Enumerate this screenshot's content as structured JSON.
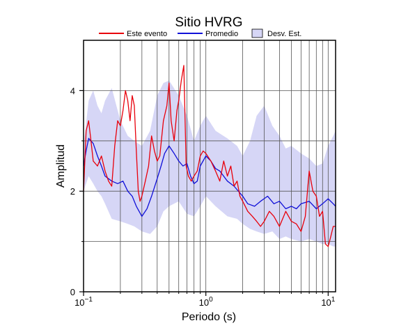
{
  "chart_data": {
    "type": "line",
    "title": "Sitio HVRG",
    "xlabel": "Periodo (s)",
    "ylabel": "Amplitud",
    "x_scale": "log",
    "xlim": [
      0.1,
      11.5
    ],
    "ylim": [
      0,
      5
    ],
    "x_ticks": [
      {
        "value": 0.1,
        "base": "10",
        "exp": "−1"
      },
      {
        "value": 1,
        "base": "10",
        "exp": "0"
      },
      {
        "value": 10,
        "base": "10",
        "exp": "1"
      }
    ],
    "y_ticks": [
      {
        "value": 0,
        "label": "0"
      },
      {
        "value": 2,
        "label": "2"
      },
      {
        "value": 4,
        "label": "4"
      }
    ],
    "y_minor_grid": [
      1,
      3
    ],
    "grid": true,
    "legend_position": "top",
    "legend": [
      {
        "label": "Este evento",
        "kind": "line",
        "color": "#e8000b"
      },
      {
        "label": "Promedio",
        "kind": "line",
        "color": "#1010d8"
      },
      {
        "label": "Desv. Est.",
        "kind": "box",
        "color": "#d6d6f6"
      }
    ],
    "series": [
      {
        "name": "Este evento",
        "color": "#e8000b",
        "x": [
          0.1,
          0.105,
          0.11,
          0.115,
          0.12,
          0.13,
          0.14,
          0.15,
          0.16,
          0.17,
          0.18,
          0.19,
          0.2,
          0.21,
          0.22,
          0.23,
          0.24,
          0.25,
          0.26,
          0.27,
          0.28,
          0.29,
          0.3,
          0.32,
          0.34,
          0.36,
          0.38,
          0.4,
          0.42,
          0.45,
          0.48,
          0.5,
          0.52,
          0.55,
          0.58,
          0.6,
          0.63,
          0.66,
          0.69,
          0.72,
          0.76,
          0.8,
          0.85,
          0.9,
          0.95,
          1.0,
          1.1,
          1.2,
          1.3,
          1.4,
          1.5,
          1.6,
          1.7,
          1.8,
          1.9,
          2.0,
          2.2,
          2.4,
          2.6,
          2.8,
          3.0,
          3.3,
          3.6,
          4.0,
          4.5,
          5.0,
          5.5,
          6.0,
          6.5,
          7.0,
          7.5,
          8.0,
          8.5,
          9.0,
          9.5,
          10.0,
          10.5,
          11.0,
          11.5
        ],
        "y": [
          2.0,
          3.2,
          3.4,
          3.0,
          2.6,
          2.5,
          2.7,
          2.4,
          2.2,
          2.1,
          2.9,
          3.4,
          3.3,
          3.6,
          4.0,
          3.8,
          3.4,
          3.9,
          3.7,
          2.8,
          2.0,
          1.8,
          1.9,
          2.2,
          2.5,
          3.1,
          2.8,
          2.6,
          2.7,
          3.4,
          3.7,
          4.15,
          3.4,
          3.0,
          3.6,
          3.8,
          4.2,
          4.5,
          2.5,
          2.3,
          2.2,
          2.3,
          2.4,
          2.7,
          2.8,
          2.75,
          2.6,
          2.4,
          2.2,
          2.6,
          2.3,
          2.5,
          2.1,
          2.2,
          1.9,
          1.8,
          1.6,
          1.5,
          1.4,
          1.3,
          1.4,
          1.6,
          1.5,
          1.3,
          1.6,
          1.4,
          1.35,
          1.2,
          1.5,
          2.4,
          2.0,
          1.9,
          1.5,
          1.6,
          0.95,
          0.9,
          1.1,
          1.3,
          1.3
        ]
      },
      {
        "name": "Promedio",
        "color": "#1010d8",
        "x": [
          0.1,
          0.105,
          0.11,
          0.12,
          0.13,
          0.14,
          0.15,
          0.17,
          0.19,
          0.21,
          0.23,
          0.25,
          0.27,
          0.3,
          0.33,
          0.36,
          0.4,
          0.43,
          0.46,
          0.5,
          0.55,
          0.6,
          0.65,
          0.7,
          0.75,
          0.8,
          0.85,
          0.9,
          1.0,
          1.1,
          1.2,
          1.3,
          1.5,
          1.7,
          2.0,
          2.2,
          2.5,
          2.8,
          3.2,
          3.6,
          4.0,
          4.5,
          5.0,
          5.5,
          6.0,
          7.0,
          8.0,
          9.0,
          10.0,
          11.0,
          11.5
        ],
        "y": [
          2.5,
          2.8,
          3.05,
          2.95,
          2.7,
          2.5,
          2.3,
          2.2,
          2.15,
          2.2,
          2.0,
          1.9,
          1.7,
          1.5,
          1.65,
          1.9,
          2.25,
          2.5,
          2.75,
          2.9,
          2.75,
          2.6,
          2.5,
          2.55,
          2.3,
          2.15,
          2.2,
          2.5,
          2.7,
          2.6,
          2.45,
          2.4,
          2.2,
          2.1,
          1.9,
          1.75,
          1.7,
          1.8,
          1.9,
          1.75,
          1.8,
          1.65,
          1.7,
          1.65,
          1.75,
          1.8,
          1.65,
          1.75,
          1.85,
          1.75,
          1.7
        ]
      }
    ],
    "band": {
      "name": "Desv. Est.",
      "color": "#d6d6f6",
      "x": [
        0.1,
        0.11,
        0.12,
        0.13,
        0.14,
        0.15,
        0.17,
        0.2,
        0.23,
        0.26,
        0.3,
        0.35,
        0.4,
        0.45,
        0.5,
        0.6,
        0.7,
        0.8,
        0.9,
        1.0,
        1.2,
        1.5,
        1.8,
        2.0,
        2.3,
        2.6,
        3.0,
        3.5,
        4.0,
        4.5,
        5.0,
        6.0,
        7.0,
        8.0,
        9.0,
        10.0,
        11.0,
        11.5
      ],
      "upper": [
        2.9,
        3.8,
        4.0,
        3.7,
        3.55,
        3.8,
        4.05,
        3.4,
        3.1,
        3.0,
        2.9,
        3.2,
        3.9,
        4.15,
        4.2,
        3.9,
        3.5,
        3.0,
        3.3,
        3.5,
        3.2,
        3.05,
        2.9,
        2.7,
        3.0,
        3.5,
        3.7,
        3.3,
        3.1,
        2.85,
        2.9,
        2.75,
        2.65,
        2.5,
        2.55,
        2.9,
        3.1,
        3.2
      ],
      "lower": [
        2.0,
        2.3,
        2.15,
        2.0,
        1.9,
        1.75,
        1.45,
        1.4,
        1.35,
        1.3,
        1.2,
        1.15,
        1.3,
        1.6,
        1.7,
        1.8,
        1.55,
        1.5,
        1.7,
        1.9,
        1.7,
        1.5,
        1.45,
        1.35,
        1.25,
        1.2,
        1.15,
        1.2,
        1.05,
        1.1,
        1.05,
        1.0,
        1.05,
        1.0,
        0.95,
        0.95,
        0.9,
        0.9
      ]
    }
  }
}
